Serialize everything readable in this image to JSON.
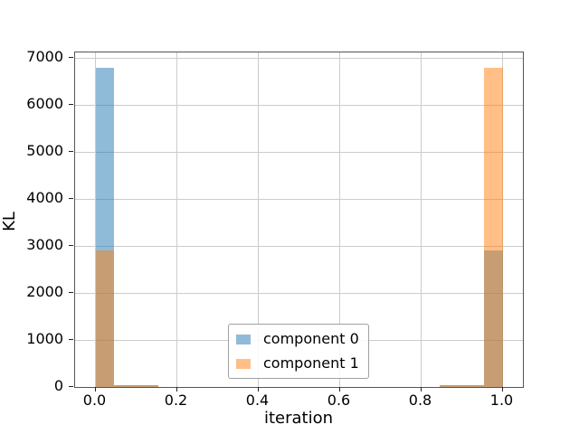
{
  "chart_data": {
    "type": "histogram",
    "title": "",
    "xlabel": "iteration",
    "ylabel": "KL",
    "xlim": [
      -0.05,
      1.05
    ],
    "ylim": [
      0,
      7120
    ],
    "grid": true,
    "xticks": [
      {
        "v": 0.0,
        "label": "0.0"
      },
      {
        "v": 0.2,
        "label": "0.2"
      },
      {
        "v": 0.4,
        "label": "0.4"
      },
      {
        "v": 0.6,
        "label": "0.6"
      },
      {
        "v": 0.8,
        "label": "0.8"
      },
      {
        "v": 1.0,
        "label": "1.0"
      }
    ],
    "yticks": [
      {
        "v": 0,
        "label": "0"
      },
      {
        "v": 1000,
        "label": "1000"
      },
      {
        "v": 2000,
        "label": "2000"
      },
      {
        "v": 3000,
        "label": "3000"
      },
      {
        "v": 4000,
        "label": "4000"
      },
      {
        "v": 5000,
        "label": "5000"
      },
      {
        "v": 6000,
        "label": "6000"
      },
      {
        "v": 7000,
        "label": "7000"
      }
    ],
    "series": [
      {
        "name": "component 0",
        "fill": "rgba(31,119,180,0.5)",
        "bins": [
          {
            "x0": 0.0,
            "x1": 0.045,
            "count": 6800
          },
          {
            "x0": 0.045,
            "x1": 0.155,
            "count": 40
          },
          {
            "x0": 0.845,
            "x1": 0.955,
            "count": 40
          },
          {
            "x0": 0.955,
            "x1": 1.0,
            "count": 2900
          }
        ]
      },
      {
        "name": "component 1",
        "fill": "rgba(255,127,14,0.5)",
        "bins": [
          {
            "x0": 0.0,
            "x1": 0.045,
            "count": 2900
          },
          {
            "x0": 0.045,
            "x1": 0.155,
            "count": 40
          },
          {
            "x0": 0.845,
            "x1": 0.955,
            "count": 40
          },
          {
            "x0": 0.955,
            "x1": 1.0,
            "count": 6800
          }
        ]
      }
    ],
    "legend": {
      "position": "lower center",
      "entries": [
        {
          "label": "component 0",
          "swatch": "#8fbbd9"
        },
        {
          "label": "component 1",
          "swatch": "#ffbf86"
        }
      ]
    },
    "colors": {
      "background": "#ffffff",
      "spine": "#555555",
      "grid": "#cccccc",
      "tick": "#222222",
      "text": "#000000",
      "overlap": "#c79d73",
      "legend_border": "#a0a0a0"
    }
  }
}
